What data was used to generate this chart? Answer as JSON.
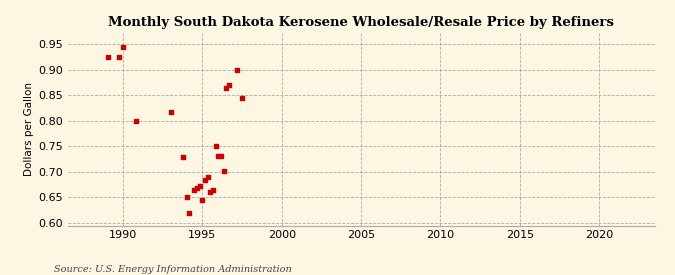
{
  "title": "Monthly South Dakota Kerosene Wholesale/Resale Price by Refiners",
  "ylabel": "Dollars per Gallon",
  "source": "Source: U.S. Energy Information Administration",
  "xlim": [
    1986.5,
    2023.5
  ],
  "ylim": [
    0.595,
    0.972
  ],
  "xticks": [
    1990,
    1995,
    2000,
    2005,
    2010,
    2015,
    2020
  ],
  "yticks": [
    0.6,
    0.65,
    0.7,
    0.75,
    0.8,
    0.85,
    0.9,
    0.95
  ],
  "background_color": "#fdf6e3",
  "marker_color": "#cc0000",
  "x": [
    1989.08,
    1989.75,
    1990.0,
    1990.83,
    1993.0,
    1993.75,
    1994.0,
    1994.17,
    1994.5,
    1994.67,
    1994.83,
    1995.0,
    1995.17,
    1995.33,
    1995.5,
    1995.67,
    1995.83,
    1996.0,
    1996.17,
    1996.33,
    1996.5,
    1996.67,
    1997.17,
    1997.5
  ],
  "y": [
    0.925,
    0.925,
    0.945,
    0.8,
    0.818,
    0.73,
    0.65,
    0.62,
    0.665,
    0.668,
    0.672,
    0.645,
    0.685,
    0.69,
    0.66,
    0.664,
    0.75,
    0.732,
    0.732,
    0.702,
    0.865,
    0.87,
    0.9,
    0.845
  ],
  "figsize": [
    6.75,
    2.75
  ],
  "dpi": 100
}
